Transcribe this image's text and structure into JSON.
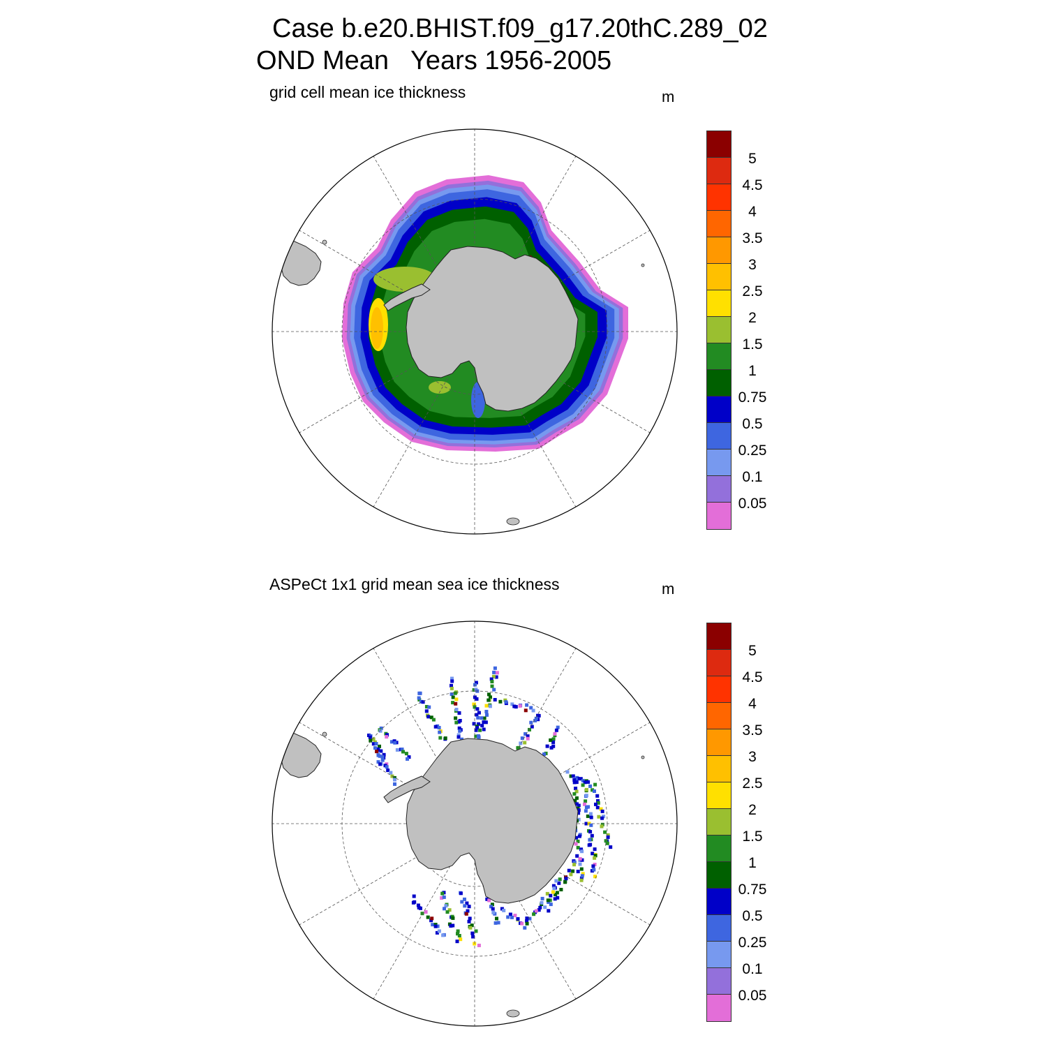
{
  "title": {
    "line1": "Case b.e20.BHIST.f09_g17.20thC.289_02",
    "line2": "OND Mean   Years 1956-2005"
  },
  "panels": [
    {
      "id": "model",
      "title": "grid cell mean ice thickness",
      "units": "m",
      "field": "continuous",
      "colors": [
        "#e36ed8",
        "#9370db",
        "#7799ef",
        "#3e66e0",
        "#0000c8",
        "#006000",
        "#228b22",
        "#9abf30",
        "#ffe000",
        "#ffc000",
        "#ff9800",
        "#ff6600",
        "#ff3300",
        "#dd2a10",
        "#8b0000"
      ]
    },
    {
      "id": "aspect",
      "title": "ASPeCt 1x1 grid mean sea ice thickness",
      "units": "m",
      "field": "observation-tracks",
      "colors": [
        "#e36ed8",
        "#9370db",
        "#7799ef",
        "#3e66e0",
        "#0000c8",
        "#006000",
        "#228b22",
        "#9abf30",
        "#ffe000",
        "#ffc000",
        "#ff9800",
        "#ff6600",
        "#ff3300",
        "#dd2a10",
        "#8b0000"
      ]
    }
  ],
  "colorbar": {
    "labels": [
      "5",
      "4.5",
      "4",
      "3.5",
      "3",
      "2.5",
      "2",
      "1.5",
      "1",
      "0.75",
      "0.5",
      "0.25",
      "0.1",
      "0.05"
    ],
    "colors_top_to_bottom": [
      "#8b0000",
      "#dd2a10",
      "#ff3300",
      "#ff6600",
      "#ff9800",
      "#ffc000",
      "#ffe000",
      "#9abf30",
      "#228b22",
      "#006000",
      "#0000c8",
      "#3e66e0",
      "#7799ef",
      "#9370db",
      "#e36ed8"
    ]
  },
  "map_style": {
    "land_color": "#c0c0c0",
    "grid_color": "#555555",
    "projection": "south-polar-stereographic"
  }
}
